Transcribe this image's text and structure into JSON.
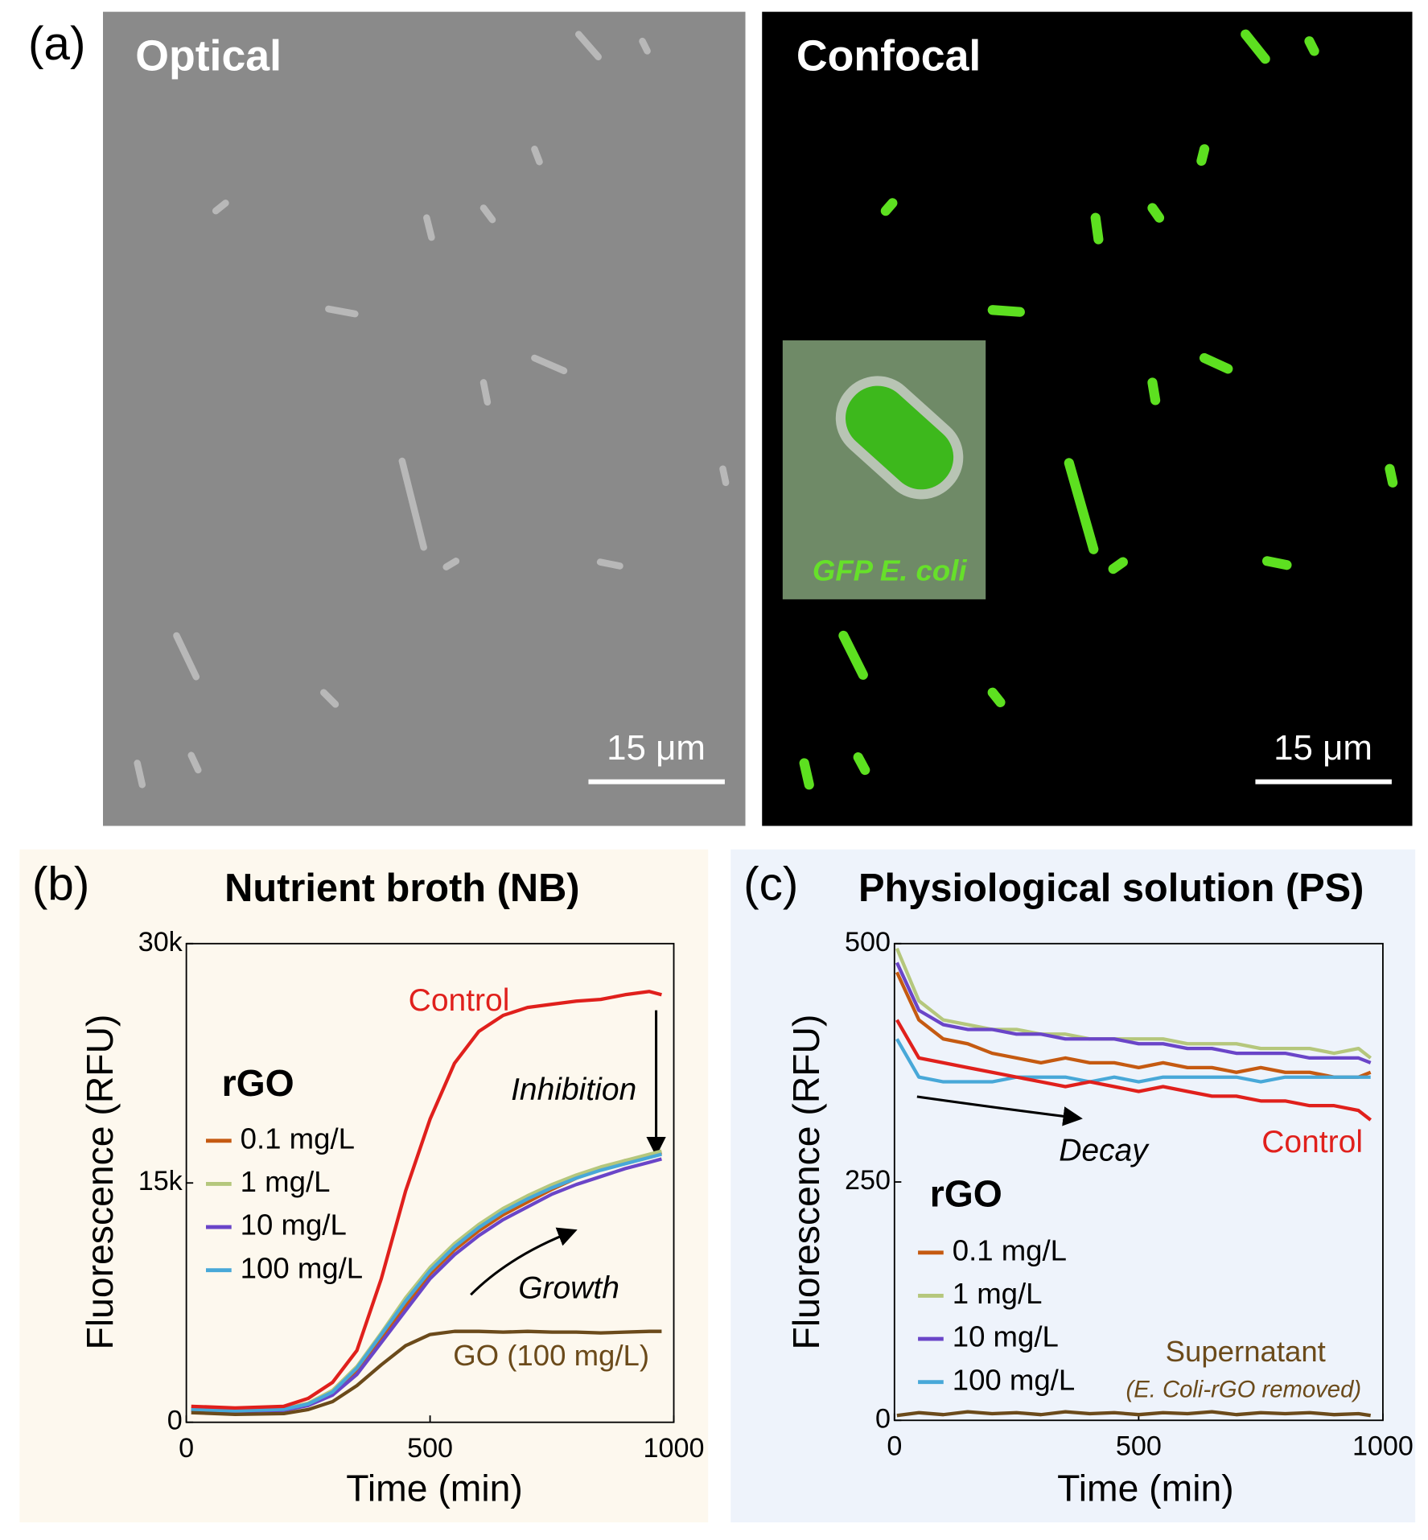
{
  "panel_a": {
    "label": "(a)",
    "images": [
      {
        "title": "Optical",
        "scale_bar": "15 μm"
      },
      {
        "title": "Confocal",
        "scale_bar": "15 μm",
        "inset_label": "GFP E. coli"
      }
    ]
  },
  "chart_data": [
    {
      "type": "line",
      "label": "(b)",
      "title": "Nutrient broth (NB)",
      "xlabel": "Time (min)",
      "ylabel": "Fluorescence (RFU)",
      "xlim": [
        0,
        1000
      ],
      "xticks": [
        0,
        500,
        1000
      ],
      "ylim": [
        0,
        30000
      ],
      "yticks": [
        0,
        {
          "value": 15000,
          "label": "15k"
        },
        {
          "value": 30000,
          "label": "30k"
        }
      ],
      "legend_title": "rGO",
      "annotations": [
        "Inhibition",
        "Growth"
      ],
      "x": [
        10,
        100,
        200,
        250,
        300,
        350,
        400,
        450,
        500,
        550,
        600,
        650,
        700,
        750,
        800,
        850,
        900,
        950,
        975
      ],
      "series": [
        {
          "name": "0.1 mg/L",
          "color": "#c55a11",
          "values": [
            800,
            700,
            800,
            1100,
            1800,
            3200,
            5200,
            7300,
            9300,
            10800,
            12000,
            13000,
            13800,
            14600,
            15300,
            15900,
            16400,
            16700,
            16900
          ]
        },
        {
          "name": "1 mg/L",
          "color": "#b5c77c",
          "values": [
            850,
            750,
            850,
            1200,
            2000,
            3500,
            5600,
            7800,
            9700,
            11200,
            12400,
            13400,
            14200,
            14900,
            15500,
            16000,
            16400,
            16800,
            17000
          ]
        },
        {
          "name": "10 mg/L",
          "color": "#6a45c8",
          "values": [
            750,
            700,
            750,
            1050,
            1700,
            3000,
            5000,
            7000,
            9000,
            10500,
            11700,
            12700,
            13500,
            14300,
            14900,
            15400,
            15900,
            16300,
            16500
          ]
        },
        {
          "name": "100 mg/L",
          "color": "#48a8d8",
          "values": [
            800,
            720,
            820,
            1150,
            1900,
            3400,
            5500,
            7600,
            9500,
            11000,
            12200,
            13200,
            14000,
            14700,
            15300,
            15800,
            16200,
            16600,
            16800
          ]
        },
        {
          "name": "Control",
          "color": "#e0201c",
          "values": [
            1000,
            900,
            1000,
            1500,
            2500,
            4500,
            9000,
            14500,
            19000,
            22500,
            24500,
            25500,
            26000,
            26200,
            26400,
            26500,
            26800,
            27000,
            26800
          ]
        },
        {
          "name": "GO (100 mg/L)",
          "color": "#6b4a1a",
          "values": [
            600,
            500,
            550,
            800,
            1300,
            2300,
            3600,
            4800,
            5500,
            5700,
            5700,
            5650,
            5700,
            5650,
            5650,
            5600,
            5650,
            5700,
            5700
          ]
        }
      ]
    },
    {
      "type": "line",
      "label": "(c)",
      "title": "Physiological solution (PS)",
      "xlabel": "Time (min)",
      "ylabel": "Fluorescence (RFU)",
      "xlim": [
        0,
        1000
      ],
      "xticks": [
        0,
        500,
        1000
      ],
      "ylim": [
        0,
        500
      ],
      "yticks": [
        0,
        250,
        500
      ],
      "legend_title": "rGO",
      "annotations": [
        "Decay",
        "(E. Coli-rGO removed)"
      ],
      "x": [
        5,
        50,
        100,
        150,
        200,
        250,
        300,
        350,
        400,
        450,
        500,
        550,
        600,
        650,
        700,
        750,
        800,
        850,
        900,
        950,
        975
      ],
      "series": [
        {
          "name": "0.1 mg/L",
          "color": "#c55a11",
          "values": [
            470,
            420,
            400,
            395,
            385,
            380,
            375,
            380,
            375,
            375,
            370,
            375,
            370,
            370,
            365,
            370,
            365,
            365,
            360,
            360,
            365
          ]
        },
        {
          "name": "1 mg/L",
          "color": "#b5c77c",
          "values": [
            495,
            440,
            420,
            415,
            410,
            410,
            405,
            405,
            400,
            400,
            400,
            400,
            395,
            395,
            395,
            390,
            390,
            390,
            385,
            390,
            380
          ]
        },
        {
          "name": "10 mg/L",
          "color": "#6a45c8",
          "values": [
            480,
            430,
            415,
            410,
            410,
            405,
            405,
            400,
            400,
            400,
            395,
            395,
            390,
            390,
            385,
            385,
            385,
            380,
            380,
            380,
            375
          ]
        },
        {
          "name": "100 mg/L",
          "color": "#48a8d8",
          "values": [
            400,
            360,
            355,
            355,
            355,
            360,
            360,
            360,
            355,
            360,
            355,
            360,
            360,
            360,
            360,
            355,
            360,
            360,
            360,
            360,
            360
          ]
        },
        {
          "name": "Control",
          "color": "#e0201c",
          "values": [
            420,
            380,
            375,
            370,
            365,
            360,
            355,
            350,
            355,
            350,
            345,
            350,
            345,
            340,
            340,
            335,
            335,
            330,
            330,
            325,
            315
          ]
        },
        {
          "name": "Supernatant",
          "color": "#6b4a1a",
          "values": [
            5,
            8,
            6,
            9,
            7,
            8,
            6,
            9,
            7,
            8,
            6,
            8,
            7,
            9,
            6,
            8,
            7,
            8,
            6,
            7,
            5
          ]
        }
      ]
    }
  ]
}
